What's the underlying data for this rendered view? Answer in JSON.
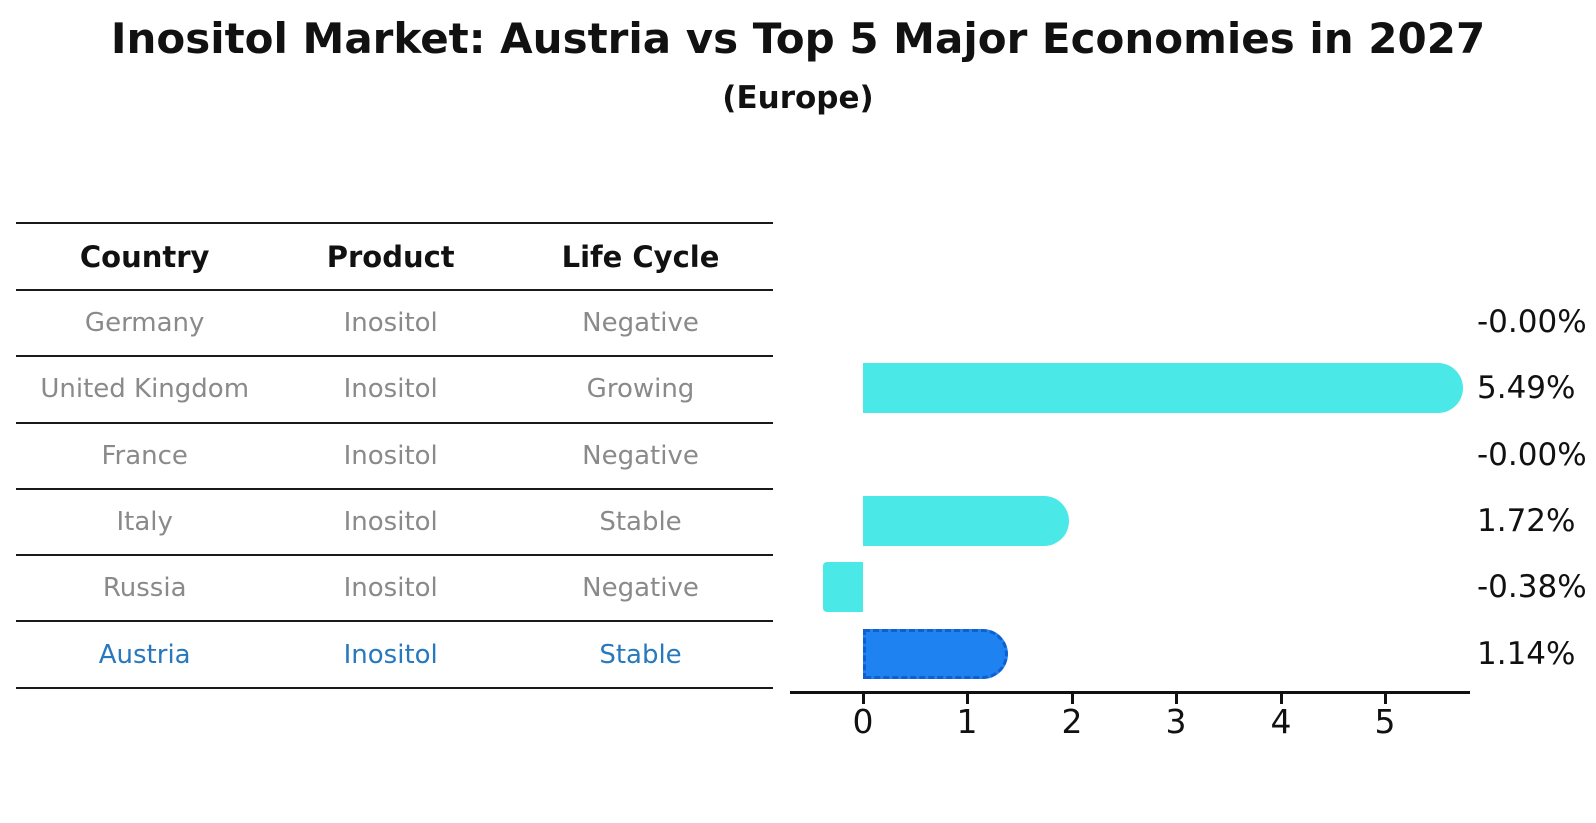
{
  "title": "Inositol Market: Austria vs Top 5 Major Economies in 2027",
  "subtitle": "(Europe)",
  "table": {
    "headers": [
      "Country",
      "Product",
      "Life Cycle"
    ],
    "rows": [
      {
        "country": "Germany",
        "product": "Inositol",
        "life_cycle": "Negative"
      },
      {
        "country": "United Kingdom",
        "product": "Inositol",
        "life_cycle": "Growing"
      },
      {
        "country": "France",
        "product": "Inositol",
        "life_cycle": "Negative"
      },
      {
        "country": "Italy",
        "product": "Inositol",
        "life_cycle": "Stable"
      },
      {
        "country": "Russia",
        "product": "Inositol",
        "life_cycle": "Negative"
      },
      {
        "country": "Austria",
        "product": "Inositol",
        "life_cycle": "Stable"
      }
    ],
    "highlight_row": "Austria"
  },
  "chart_data": {
    "type": "bar",
    "orientation": "horizontal",
    "categories": [
      "Germany",
      "United Kingdom",
      "France",
      "Italy",
      "Russia",
      "Austria"
    ],
    "values": [
      -0.0,
      5.49,
      -0.0,
      1.72,
      -0.38,
      1.14
    ],
    "value_labels": [
      "-0.00%",
      "5.49%",
      "-0.00%",
      "1.72%",
      "-0.38%",
      "1.14%"
    ],
    "xticks": [
      "0",
      "1",
      "2",
      "3",
      "4",
      "5"
    ],
    "xlim": [
      -0.7,
      5.8
    ],
    "ylabel": "",
    "xlabel": "",
    "grid": false,
    "legend": "none",
    "bar_color": "#4ae8e6",
    "highlight_color": "#1e82f0",
    "highlight_index": 5,
    "highlight_border_style": "dashed",
    "axis_color": "#111111",
    "highlight_text_color": "#2878be",
    "table_text_color": "#8a8a8a"
  }
}
